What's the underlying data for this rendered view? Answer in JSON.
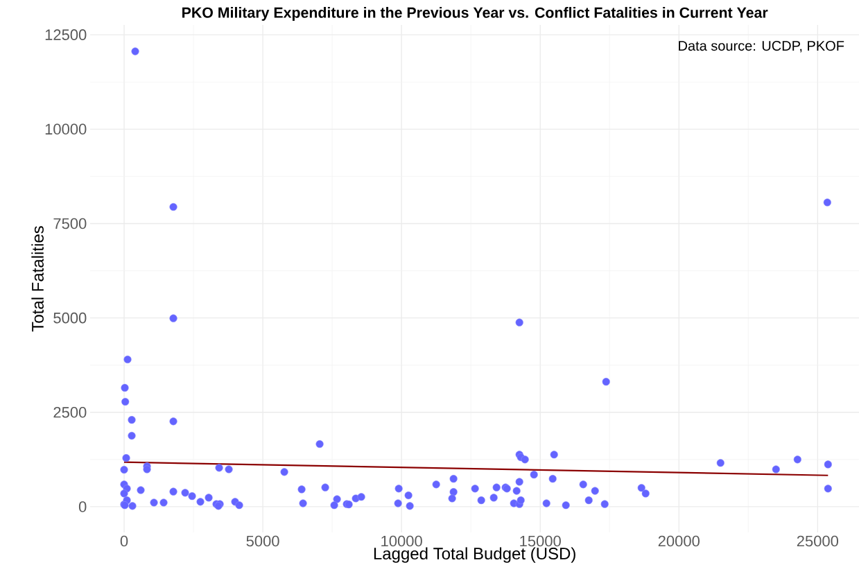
{
  "chart_data": {
    "type": "scatter",
    "title": "PKO Military Expenditure in the Previous Year vs. Conflict Fatalities in Current Year",
    "xlabel": "Lagged Total Budget (USD)",
    "ylabel": "Total Fatalities",
    "annotations": [
      "Data source: UCDP, PKOF"
    ],
    "xlim": [
      -1225,
      26500
    ],
    "ylim": [
      -680,
      12760
    ],
    "xticks": [
      0,
      5000,
      10000,
      15000,
      20000,
      25000
    ],
    "yticks": [
      0,
      2500,
      5000,
      7500,
      10000,
      12500
    ],
    "grid": true,
    "series": [
      {
        "color": "#6464ff",
        "x": [
          400,
          1775,
          25350,
          1775,
          14250,
          17375,
          125,
          25,
          42,
          275,
          1775,
          275,
          75,
          0,
          825,
          825,
          3425,
          3775,
          5775,
          7050,
          0,
          100,
          0,
          600,
          1775,
          2200,
          2450,
          3050,
          1075,
          1425,
          2750,
          3325,
          3450,
          3400,
          4000,
          4150,
          6400,
          6450,
          7250,
          7675,
          7575,
          8025,
          8100,
          8350,
          8550,
          0,
          100,
          300,
          25,
          9900,
          9875,
          10250,
          10300,
          11250,
          11875,
          11875,
          11825,
          12650,
          12875,
          13325,
          13425,
          13750,
          13800,
          14150,
          14250,
          14250,
          14300,
          14450,
          14050,
          14250,
          14300,
          14775,
          15500,
          15450,
          15225,
          15925,
          16550,
          16975,
          16750,
          17325,
          18650,
          18800,
          21500,
          23500,
          24275,
          25375,
          25375
        ],
        "values": [
          12060,
          7940,
          8060,
          4990,
          4880,
          3310,
          3900,
          3150,
          2780,
          2300,
          2260,
          1880,
          1290,
          980,
          1070,
          990,
          1030,
          990,
          920,
          1660,
          590,
          480,
          350,
          440,
          400,
          370,
          280,
          240,
          110,
          110,
          130,
          70,
          70,
          20,
          130,
          40,
          460,
          90,
          510,
          200,
          40,
          70,
          60,
          220,
          260,
          60,
          170,
          20,
          40,
          480,
          90,
          300,
          20,
          590,
          740,
          390,
          220,
          480,
          170,
          240,
          510,
          510,
          480,
          420,
          660,
          1380,
          1310,
          1250,
          90,
          70,
          170,
          850,
          1380,
          740,
          90,
          40,
          590,
          420,
          170,
          70,
          500,
          350,
          1160,
          990,
          1250,
          1120,
          480
        ]
      },
      {
        "type": "line",
        "color": "#8b0000",
        "x": [
          0,
          25375
        ],
        "values": [
          1180,
          830
        ]
      }
    ]
  }
}
